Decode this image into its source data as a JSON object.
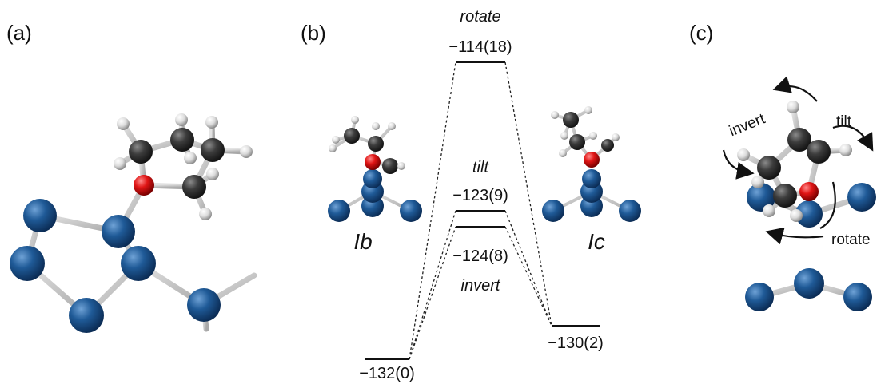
{
  "panels": {
    "a": "(a)",
    "b": "(b)",
    "c": "(c)"
  },
  "energy_diagram": {
    "levels": {
      "ib": "−132(0)",
      "invert": "−124(8)",
      "tilt": "−123(9)",
      "rotate": "−114(18)",
      "ic": "−130(2)"
    },
    "transitions": {
      "rotate": "rotate",
      "tilt": "tilt",
      "invert": "invert"
    },
    "states": {
      "ib": "Ib",
      "ic": "Ic"
    }
  },
  "panel_c": {
    "invert": "invert",
    "tilt": "tilt",
    "rotate": "rotate"
  },
  "colors": {
    "silicon": "#1a4f86",
    "carbon": "#3a3a3a",
    "oxygen": "#d40e0e",
    "hydrogen": "#d8d8d8",
    "bond": "#c8c8c8",
    "level_line": "#111111"
  }
}
